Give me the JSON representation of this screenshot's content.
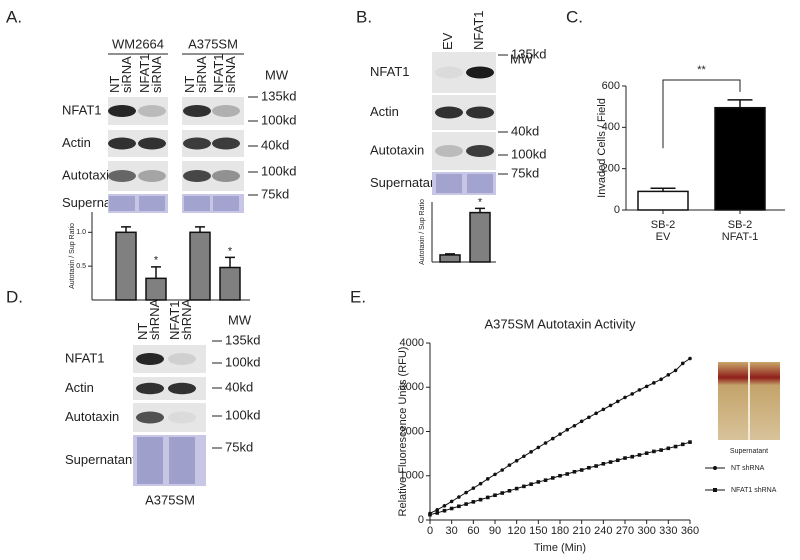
{
  "panels": {
    "A": {
      "letter": "A.",
      "groups": [
        "WM2664",
        "A375SM"
      ],
      "lanes": [
        [
          "NT",
          "siRNA"
        ],
        [
          "NFAT1",
          "siRNA"
        ],
        [
          "NT",
          "siRNA"
        ],
        [
          "NFAT1",
          "siRNA"
        ]
      ],
      "mw": "MW",
      "rows": [
        "NFAT1",
        "Actin",
        "Autotaxin",
        "Supernatant"
      ],
      "markers": [
        "135kd",
        "100kd",
        "40kd",
        "100kd",
        "75kd"
      ]
    },
    "B": {
      "letter": "B.",
      "lanes": [
        [
          "EV"
        ],
        [
          "NFAT1"
        ]
      ],
      "mw": "MW",
      "rows": [
        "NFAT1",
        "Actin",
        "Autotaxin",
        "Supernatant"
      ],
      "markers": [
        "135kd",
        "40kd",
        "100kd",
        "75kd"
      ]
    },
    "C": {
      "letter": "C."
    },
    "D": {
      "letter": "D.",
      "lanes": [
        [
          "NT",
          "shRNA"
        ],
        [
          "NFAT1",
          "shRNA"
        ]
      ],
      "mw": "MW",
      "rows": [
        "NFAT1",
        "Actin",
        "Autotaxin",
        "Supernatant"
      ],
      "markers": [
        "135kd",
        "100kd",
        "40kd",
        "100kd",
        "75kd"
      ],
      "caption": "A375SM"
    },
    "E": {
      "letter": "E.",
      "image_caption": "Supernatant"
    }
  },
  "chart_data": [
    {
      "type": "bar",
      "y_label": "Autotaxin / Sup Ratio",
      "categories": [
        null,
        null,
        null,
        null
      ],
      "values": [
        1.0,
        0.32,
        1.0,
        0.48
      ],
      "errors": [
        0.08,
        0.17,
        0.08,
        0.15
      ],
      "annotations": [
        null,
        "*",
        null,
        "*"
      ],
      "color": "#808080",
      "ylim": [
        0,
        1.3
      ],
      "yticks": [
        {
          "value": 0.5,
          "label": "0.5"
        },
        {
          "value": 1,
          "label": "1.0"
        }
      ]
    },
    {
      "type": "bar",
      "y_label": "Autotaxin / Sup Ratio",
      "categories": [
        null,
        null
      ],
      "values": [
        1.0,
        7.0
      ],
      "errors": [
        0.15,
        0.6
      ],
      "annotations": [
        null,
        "*"
      ],
      "color": "#808080",
      "ylim": [
        0,
        8.5
      ]
    },
    {
      "type": "bar",
      "y_label": "Invaded Cells / Field",
      "categories": [
        [
          "SB-2",
          "EV"
        ],
        [
          "SB-2",
          "NFAT-1"
        ]
      ],
      "values": [
        90,
        495
      ],
      "errors": [
        15,
        38
      ],
      "colors": [
        "#ffffff",
        "#000000"
      ],
      "annotation": "**",
      "ylim": [
        0,
        600
      ],
      "yticks": [
        0,
        200,
        400,
        600
      ]
    },
    {
      "type": "line",
      "title": "A375SM Autotaxin Activity",
      "x_label": "Time  (Min)",
      "y_label": "Relative Fluorescence Units  (RFU)",
      "x": [
        0,
        10,
        20,
        30,
        40,
        50,
        60,
        70,
        80,
        90,
        100,
        110,
        120,
        130,
        140,
        150,
        160,
        170,
        180,
        190,
        200,
        210,
        220,
        230,
        240,
        250,
        260,
        270,
        280,
        290,
        300,
        310,
        320,
        330,
        340,
        350,
        360
      ],
      "series": [
        {
          "name": "NT shRNA",
          "color": "#111111",
          "marker": "circle",
          "values": [
            150,
            230,
            320,
            420,
            520,
            620,
            720,
            820,
            930,
            1030,
            1130,
            1240,
            1340,
            1440,
            1540,
            1640,
            1740,
            1840,
            1940,
            2040,
            2130,
            2230,
            2320,
            2410,
            2500,
            2590,
            2680,
            2770,
            2850,
            2940,
            3020,
            3100,
            3180,
            3280,
            3380,
            3540,
            3650
          ]
        },
        {
          "name": "NFAT1 shRNA",
          "color": "#111111",
          "marker": "square",
          "values": [
            120,
            160,
            210,
            260,
            310,
            360,
            410,
            460,
            510,
            560,
            610,
            660,
            710,
            760,
            810,
            860,
            900,
            950,
            1000,
            1040,
            1090,
            1130,
            1180,
            1220,
            1270,
            1310,
            1350,
            1400,
            1430,
            1470,
            1510,
            1550,
            1580,
            1620,
            1660,
            1710,
            1760
          ]
        }
      ],
      "xlim": [
        0,
        360
      ],
      "ylim": [
        0,
        4000
      ],
      "xticks": [
        0,
        30,
        60,
        90,
        120,
        150,
        180,
        210,
        240,
        270,
        300,
        330,
        360
      ],
      "yticks": [
        0,
        1000,
        2000,
        3000,
        4000
      ]
    }
  ]
}
